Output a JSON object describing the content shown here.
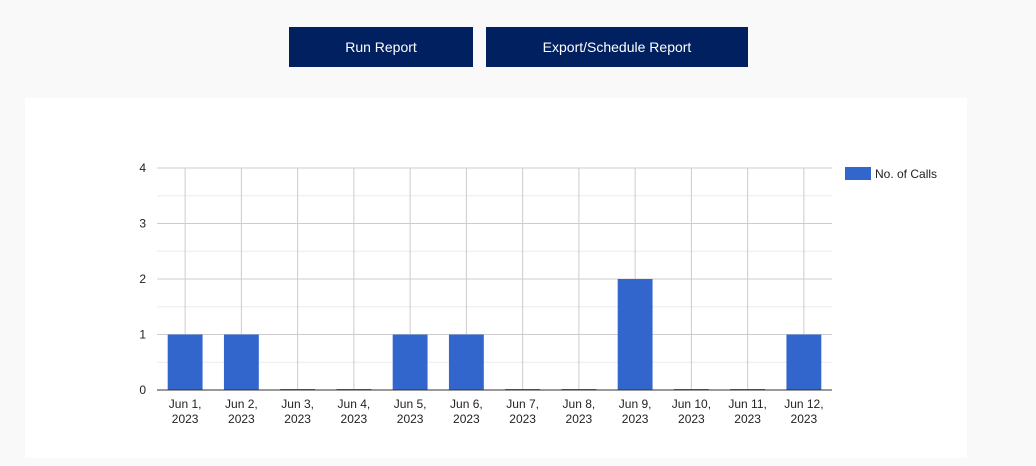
{
  "toolbar": {
    "run_report_label": "Run Report",
    "export_schedule_label": "Export/Schedule Report"
  },
  "colors": {
    "button_bg": "#002060",
    "bar": "#3366cc",
    "grid": "#cccccc",
    "minor_grid": "#ebebeb",
    "axis": "#333333"
  },
  "chart_data": {
    "type": "bar",
    "categories": [
      [
        "Jun 1,",
        "2023"
      ],
      [
        "Jun 2,",
        "2023"
      ],
      [
        "Jun 3,",
        "2023"
      ],
      [
        "Jun 4,",
        "2023"
      ],
      [
        "Jun 5,",
        "2023"
      ],
      [
        "Jun 6,",
        "2023"
      ],
      [
        "Jun 7,",
        "2023"
      ],
      [
        "Jun 8,",
        "2023"
      ],
      [
        "Jun 9,",
        "2023"
      ],
      [
        "Jun 10,",
        "2023"
      ],
      [
        "Jun 11,",
        "2023"
      ],
      [
        "Jun 12,",
        "2023"
      ]
    ],
    "series": [
      {
        "name": "No. of Calls",
        "values": [
          1,
          1,
          0,
          0,
          1,
          1,
          0,
          0,
          2,
          0,
          0,
          1
        ]
      }
    ],
    "yticks": [
      "0",
      "1",
      "2",
      "3",
      "4"
    ],
    "ylim": [
      0,
      4
    ],
    "grid": true,
    "legend": "right"
  }
}
